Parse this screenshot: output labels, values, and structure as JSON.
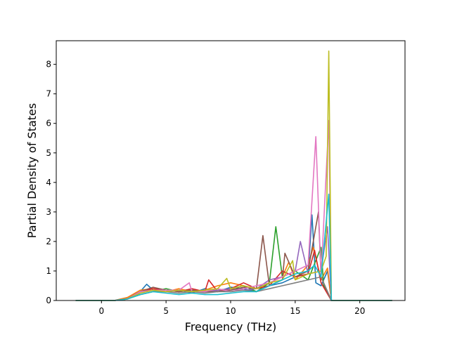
{
  "chart_data": {
    "type": "line",
    "title": "",
    "xlabel": "Frequency (THz)",
    "ylabel": "Partial Density of States",
    "xlim": [
      -3.5,
      23.5
    ],
    "ylim": [
      0,
      8.8
    ],
    "xticks": [
      0,
      5,
      10,
      15,
      20
    ],
    "yticks": [
      0,
      1,
      2,
      3,
      4,
      5,
      6,
      7,
      8
    ],
    "grid": false,
    "legend": "none",
    "colors": [
      "#1f77b4",
      "#ff7f0e",
      "#2ca02c",
      "#d62728",
      "#9467bd",
      "#8c564b",
      "#e377c2",
      "#7f7f7f",
      "#bcbd22",
      "#17becf"
    ],
    "series": [
      {
        "color": "#1f77b4",
        "x": [
          -2,
          1,
          2,
          3,
          3.5,
          4,
          5,
          6,
          7,
          8,
          9,
          10,
          11,
          12,
          13,
          14,
          15,
          16,
          16.3,
          16.6,
          17,
          17.5,
          17.8,
          22.5
        ],
        "y": [
          0,
          0,
          0.1,
          0.3,
          0.55,
          0.35,
          0.3,
          0.35,
          0.25,
          0.4,
          0.3,
          0.45,
          0.4,
          0.3,
          0.5,
          0.6,
          0.8,
          0.9,
          2.9,
          0.6,
          0.5,
          1.0,
          0,
          0
        ]
      },
      {
        "color": "#ff7f0e",
        "x": [
          -2,
          1,
          2,
          3,
          4,
          5,
          6,
          7,
          8,
          9,
          10,
          11,
          12,
          13,
          14,
          14.5,
          15,
          16,
          16.4,
          17,
          17.5,
          17.8,
          22.5
        ],
        "y": [
          0,
          0,
          0.1,
          0.35,
          0.4,
          0.3,
          0.4,
          0.3,
          0.35,
          0.5,
          0.6,
          0.5,
          0.4,
          0.6,
          0.8,
          1.3,
          0.7,
          1.2,
          1.8,
          0.7,
          1.1,
          0,
          0
        ]
      },
      {
        "color": "#2ca02c",
        "x": [
          -2,
          1,
          2,
          3,
          4,
          5,
          6,
          7,
          8,
          9,
          10,
          11,
          12,
          13,
          13.5,
          14,
          15,
          16,
          17,
          17.2,
          17.8,
          22.5
        ],
        "y": [
          0,
          0,
          0.05,
          0.2,
          0.3,
          0.4,
          0.3,
          0.35,
          0.3,
          0.35,
          0.4,
          0.5,
          0.3,
          0.6,
          2.5,
          0.8,
          1.0,
          0.7,
          1.8,
          0.5,
          0,
          0
        ]
      },
      {
        "color": "#d62728",
        "x": [
          -2,
          1,
          2,
          3,
          4,
          5,
          6,
          7,
          8,
          8.3,
          9,
          10,
          11,
          11.5,
          12,
          13,
          14,
          15,
          16,
          16.5,
          17,
          17.8,
          22.5
        ],
        "y": [
          0,
          0,
          0.05,
          0.3,
          0.4,
          0.35,
          0.3,
          0.4,
          0.3,
          0.7,
          0.3,
          0.4,
          0.6,
          0.5,
          0.4,
          0.5,
          1.0,
          0.8,
          0.9,
          1.7,
          0.6,
          0,
          0
        ]
      },
      {
        "color": "#9467bd",
        "x": [
          -2,
          1,
          2,
          3,
          4,
          5,
          6,
          7,
          8,
          9,
          10,
          11,
          12,
          13,
          14,
          15,
          15.4,
          16,
          17,
          17.5,
          17.8,
          22.5
        ],
        "y": [
          0,
          0,
          0.05,
          0.25,
          0.35,
          0.3,
          0.35,
          0.3,
          0.3,
          0.35,
          0.4,
          0.35,
          0.4,
          0.7,
          0.8,
          1.0,
          2.0,
          0.9,
          1.0,
          2.5,
          0,
          0
        ]
      },
      {
        "color": "#8c564b",
        "x": [
          -2,
          1,
          2,
          3,
          4,
          5,
          6,
          7,
          8,
          9,
          10,
          11,
          12,
          12.5,
          13,
          14,
          14.2,
          15,
          16,
          16.8,
          17,
          17.8,
          22.5
        ],
        "y": [
          0,
          0,
          0.05,
          0.3,
          0.45,
          0.35,
          0.3,
          0.35,
          0.3,
          0.3,
          0.35,
          0.45,
          0.4,
          2.2,
          0.5,
          0.7,
          1.6,
          0.8,
          1.0,
          3.0,
          0.8,
          0,
          0
        ]
      },
      {
        "color": "#e377c2",
        "x": [
          -2,
          1,
          2,
          3,
          4,
          5,
          6,
          6.8,
          7,
          8,
          9,
          10,
          11,
          12,
          13,
          14,
          15,
          16,
          16.6,
          17,
          17.6,
          17.8,
          22.5
        ],
        "y": [
          0,
          0,
          0.05,
          0.3,
          0.35,
          0.35,
          0.35,
          0.6,
          0.3,
          0.3,
          0.4,
          0.3,
          0.4,
          0.5,
          0.6,
          0.8,
          1.0,
          1.2,
          5.55,
          0.8,
          6.1,
          0,
          0
        ]
      },
      {
        "color": "#7f7f7f",
        "x": [
          -2,
          1,
          2,
          3,
          4,
          5,
          6,
          7,
          8,
          9,
          10,
          11,
          12,
          13,
          14,
          15,
          16,
          17,
          17.8,
          22.5
        ],
        "y": [
          0,
          0,
          0.05,
          0.2,
          0.3,
          0.3,
          0.25,
          0.3,
          0.25,
          0.3,
          0.3,
          0.35,
          0.3,
          0.4,
          0.5,
          0.6,
          0.7,
          0.8,
          0,
          0
        ]
      },
      {
        "color": "#bcbd22",
        "x": [
          -2,
          1,
          2,
          3,
          4,
          5,
          6,
          7,
          8,
          9,
          9.7,
          10,
          11,
          12,
          13,
          14,
          14.8,
          15,
          16,
          17,
          17.4,
          17.6,
          17.8,
          22.5
        ],
        "y": [
          0,
          0,
          0.05,
          0.25,
          0.35,
          0.3,
          0.35,
          0.3,
          0.35,
          0.4,
          0.75,
          0.4,
          0.5,
          0.4,
          0.6,
          0.7,
          1.35,
          0.7,
          0.9,
          1.0,
          1.5,
          8.45,
          0,
          0
        ]
      },
      {
        "color": "#17becf",
        "x": [
          -2,
          1,
          2,
          3,
          4,
          5,
          6,
          7,
          8,
          9,
          10,
          11,
          12,
          13,
          14,
          15,
          16,
          16.5,
          17,
          17.6,
          17.8,
          22.5
        ],
        "y": [
          0,
          0,
          0.05,
          0.2,
          0.3,
          0.25,
          0.2,
          0.25,
          0.2,
          0.2,
          0.25,
          0.3,
          0.3,
          0.5,
          0.7,
          0.9,
          1.0,
          1.2,
          0.8,
          3.6,
          0,
          0
        ]
      }
    ]
  }
}
